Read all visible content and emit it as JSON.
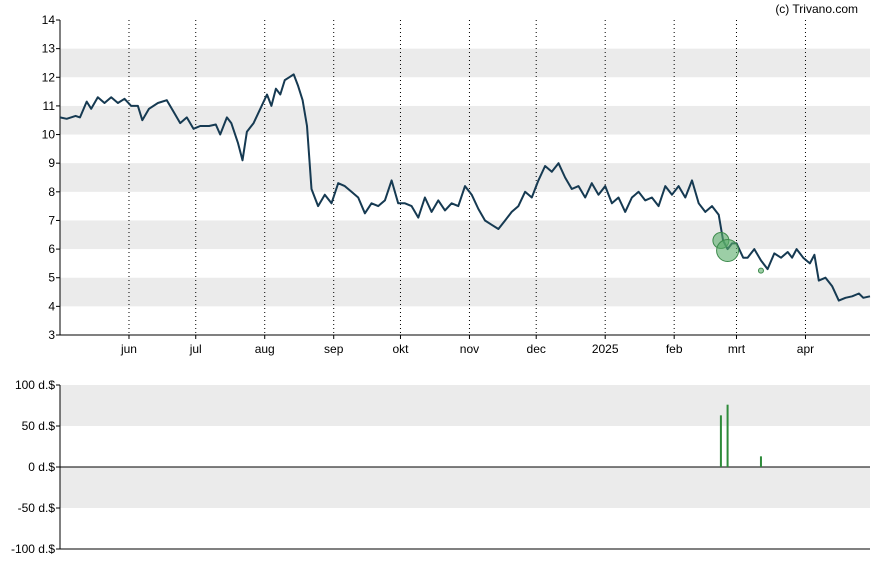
{
  "credit": "(c) Trivano.com",
  "colors": {
    "price_line": "#163a52",
    "band": "#ebebeb",
    "grid": "#000000",
    "marker_fill": "#5aae6a",
    "volume_bar": "#2e8b3a"
  },
  "chart_data": [
    {
      "type": "line",
      "title": "",
      "xlabel": "",
      "ylabel": "",
      "ylim": [
        3,
        14
      ],
      "yticks": [
        "3",
        "4",
        "5",
        "6",
        "7",
        "8",
        "9",
        "10",
        "11",
        "12",
        "13",
        "14"
      ],
      "x_tick_labels": [
        "jun",
        "jul",
        "aug",
        "sep",
        "okt",
        "nov",
        "dec",
        "2025",
        "feb",
        "mrt",
        "apr"
      ],
      "x_tick_dates": [
        "2024-06-01",
        "2024-07-01",
        "2024-08-01",
        "2024-09-01",
        "2024-10-01",
        "2024-11-01",
        "2024-12-01",
        "2025-01-01",
        "2025-02-01",
        "2025-03-01",
        "2025-04-01"
      ],
      "xlim": [
        "2024-05-01",
        "2025-04-30"
      ],
      "grid": "vertical dotted lines at month ticks, alternating horizontal bands",
      "series": [
        {
          "values": [
            [
              "2024-05-01",
              10.6
            ],
            [
              "2024-05-04",
              10.55
            ],
            [
              "2024-05-08",
              10.65
            ],
            [
              "2024-05-10",
              10.6
            ],
            [
              "2024-05-13",
              11.15
            ],
            [
              "2024-05-15",
              10.9
            ],
            [
              "2024-05-18",
              11.3
            ],
            [
              "2024-05-21",
              11.1
            ],
            [
              "2024-05-24",
              11.3
            ],
            [
              "2024-05-27",
              11.1
            ],
            [
              "2024-05-30",
              11.25
            ],
            [
              "2024-06-02",
              11.0
            ],
            [
              "2024-06-05",
              11.0
            ],
            [
              "2024-06-07",
              10.5
            ],
            [
              "2024-06-10",
              10.9
            ],
            [
              "2024-06-14",
              11.1
            ],
            [
              "2024-06-18",
              11.2
            ],
            [
              "2024-06-21",
              10.8
            ],
            [
              "2024-06-24",
              10.4
            ],
            [
              "2024-06-27",
              10.6
            ],
            [
              "2024-06-30",
              10.2
            ],
            [
              "2024-07-03",
              10.3
            ],
            [
              "2024-07-07",
              10.3
            ],
            [
              "2024-07-10",
              10.35
            ],
            [
              "2024-07-12",
              10.0
            ],
            [
              "2024-07-15",
              10.6
            ],
            [
              "2024-07-17",
              10.4
            ],
            [
              "2024-07-20",
              9.7
            ],
            [
              "2024-07-22",
              9.1
            ],
            [
              "2024-07-24",
              10.1
            ],
            [
              "2024-07-27",
              10.4
            ],
            [
              "2024-07-30",
              10.9
            ],
            [
              "2024-08-02",
              11.4
            ],
            [
              "2024-08-04",
              11.0
            ],
            [
              "2024-08-06",
              11.6
            ],
            [
              "2024-08-08",
              11.4
            ],
            [
              "2024-08-10",
              11.9
            ],
            [
              "2024-08-12",
              12.0
            ],
            [
              "2024-08-14",
              12.1
            ],
            [
              "2024-08-16",
              11.7
            ],
            [
              "2024-08-18",
              11.2
            ],
            [
              "2024-08-20",
              10.3
            ],
            [
              "2024-08-22",
              8.1
            ],
            [
              "2024-08-25",
              7.5
            ],
            [
              "2024-08-28",
              7.9
            ],
            [
              "2024-08-31",
              7.6
            ],
            [
              "2024-09-03",
              8.3
            ],
            [
              "2024-09-06",
              8.2
            ],
            [
              "2024-09-09",
              8.0
            ],
            [
              "2024-09-12",
              7.8
            ],
            [
              "2024-09-15",
              7.25
            ],
            [
              "2024-09-18",
              7.6
            ],
            [
              "2024-09-21",
              7.5
            ],
            [
              "2024-09-24",
              7.7
            ],
            [
              "2024-09-27",
              8.4
            ],
            [
              "2024-09-30",
              7.6
            ],
            [
              "2024-10-03",
              7.6
            ],
            [
              "2024-10-06",
              7.5
            ],
            [
              "2024-10-09",
              7.1
            ],
            [
              "2024-10-12",
              7.8
            ],
            [
              "2024-10-15",
              7.3
            ],
            [
              "2024-10-18",
              7.7
            ],
            [
              "2024-10-21",
              7.35
            ],
            [
              "2024-10-24",
              7.6
            ],
            [
              "2024-10-27",
              7.5
            ],
            [
              "2024-10-30",
              8.2
            ],
            [
              "2024-11-02",
              7.9
            ],
            [
              "2024-11-05",
              7.4
            ],
            [
              "2024-11-08",
              7.0
            ],
            [
              "2024-11-11",
              6.85
            ],
            [
              "2024-11-14",
              6.7
            ],
            [
              "2024-11-17",
              7.0
            ],
            [
              "2024-11-20",
              7.3
            ],
            [
              "2024-11-23",
              7.5
            ],
            [
              "2024-11-26",
              8.0
            ],
            [
              "2024-11-29",
              7.8
            ],
            [
              "2024-12-02",
              8.4
            ],
            [
              "2024-12-05",
              8.9
            ],
            [
              "2024-12-08",
              8.7
            ],
            [
              "2024-12-11",
              9.0
            ],
            [
              "2024-12-14",
              8.5
            ],
            [
              "2024-12-17",
              8.1
            ],
            [
              "2024-12-20",
              8.2
            ],
            [
              "2024-12-23",
              7.8
            ],
            [
              "2024-12-26",
              8.3
            ],
            [
              "2024-12-29",
              7.9
            ],
            [
              "2025-01-01",
              8.2
            ],
            [
              "2025-01-04",
              7.6
            ],
            [
              "2025-01-07",
              7.8
            ],
            [
              "2025-01-10",
              7.3
            ],
            [
              "2025-01-13",
              7.8
            ],
            [
              "2025-01-16",
              8.0
            ],
            [
              "2025-01-19",
              7.7
            ],
            [
              "2025-01-22",
              7.8
            ],
            [
              "2025-01-25",
              7.5
            ],
            [
              "2025-01-28",
              8.2
            ],
            [
              "2025-01-31",
              7.9
            ],
            [
              "2025-02-03",
              8.2
            ],
            [
              "2025-02-06",
              7.8
            ],
            [
              "2025-02-09",
              8.4
            ],
            [
              "2025-02-12",
              7.6
            ],
            [
              "2025-02-15",
              7.3
            ],
            [
              "2025-02-18",
              7.5
            ],
            [
              "2025-02-21",
              7.2
            ],
            [
              "2025-02-23",
              6.3
            ],
            [
              "2025-02-25",
              6.0
            ],
            [
              "2025-02-27",
              6.2
            ],
            [
              "2025-03-01",
              6.2
            ],
            [
              "2025-03-04",
              5.7
            ],
            [
              "2025-03-06",
              5.7
            ],
            [
              "2025-03-09",
              6.0
            ],
            [
              "2025-03-12",
              5.6
            ],
            [
              "2025-03-15",
              5.3
            ],
            [
              "2025-03-18",
              5.85
            ],
            [
              "2025-03-21",
              5.7
            ],
            [
              "2025-03-24",
              5.9
            ],
            [
              "2025-03-26",
              5.7
            ],
            [
              "2025-03-28",
              6.0
            ],
            [
              "2025-03-31",
              5.7
            ],
            [
              "2025-04-03",
              5.5
            ],
            [
              "2025-04-05",
              5.8
            ],
            [
              "2025-04-07",
              4.9
            ],
            [
              "2025-04-10",
              5.0
            ],
            [
              "2025-04-13",
              4.7
            ],
            [
              "2025-04-16",
              4.2
            ],
            [
              "2025-04-19",
              4.3
            ],
            [
              "2025-04-22",
              4.35
            ],
            [
              "2025-04-25",
              4.45
            ],
            [
              "2025-04-27",
              4.3
            ],
            [
              "2025-04-30",
              4.35
            ]
          ]
        }
      ],
      "markers": [
        {
          "date": "2025-02-22",
          "value": 6.3,
          "size": "medium"
        },
        {
          "date": "2025-02-25",
          "value": 5.95,
          "size": "large"
        },
        {
          "date": "2025-03-12",
          "value": 5.25,
          "size": "small"
        }
      ]
    },
    {
      "type": "bar",
      "title": "",
      "xlabel": "",
      "ylabel": "",
      "ylim": [
        -100,
        100
      ],
      "yticks": [
        "100 d.$",
        "50 d.$",
        "0 d.$",
        "-50 d.$",
        "-100 d.$"
      ],
      "xlim": [
        "2024-05-01",
        "2025-04-30"
      ],
      "series": [
        {
          "values": [
            [
              "2025-02-22",
              63
            ],
            [
              "2025-02-25",
              76
            ],
            [
              "2025-03-12",
              13
            ]
          ]
        }
      ]
    }
  ]
}
